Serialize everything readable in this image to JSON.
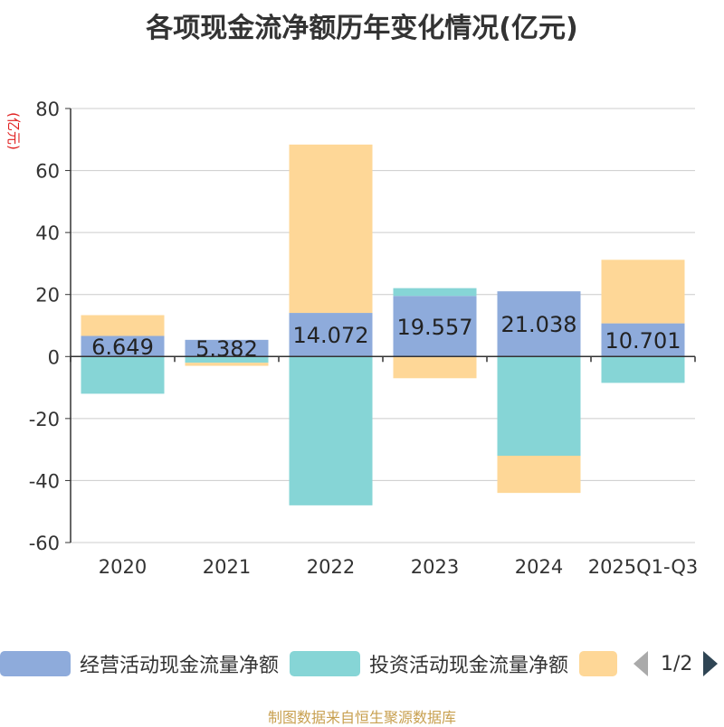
{
  "title": "各项现金流净额历年变化情况(亿元)",
  "source": "制图数据来自恒生聚源数据库",
  "legend": {
    "items": [
      {
        "label": "经营活动现金流量净额",
        "color": "#8eabdb"
      },
      {
        "label": "投资活动现金流量净额",
        "color": "#86d5d6"
      },
      {
        "label": "",
        "color": "#fed797"
      }
    ],
    "page": "1/2"
  },
  "chart_data": {
    "type": "bar",
    "stacked": true,
    "title": "各项现金流净额历年变化情况(亿元)",
    "ylabel": "(亿元)",
    "xlabel": "",
    "ylim": [
      -60,
      80
    ],
    "yticks": [
      -60,
      -40,
      -20,
      0,
      20,
      40,
      60,
      80
    ],
    "categories": [
      "2020",
      "2021",
      "2022",
      "2023",
      "2024",
      "2025Q1-Q3"
    ],
    "series": [
      {
        "name": "经营活动现金流量净额",
        "color": "#8eabdb",
        "values": [
          6.649,
          5.382,
          14.072,
          19.557,
          21.038,
          10.701
        ],
        "labels": [
          "6.649",
          "5.382",
          "14.072",
          "19.557",
          "21.038",
          "10.701"
        ]
      },
      {
        "name": "投资活动现金流量净额",
        "color": "#86d5d6",
        "values": [
          -12,
          -2,
          -48,
          2.5,
          -32,
          -8.5
        ]
      },
      {
        "name": "",
        "color": "#fed797",
        "values": [
          6.7,
          -1,
          54.3,
          -7,
          -12,
          20.5
        ]
      }
    ]
  }
}
